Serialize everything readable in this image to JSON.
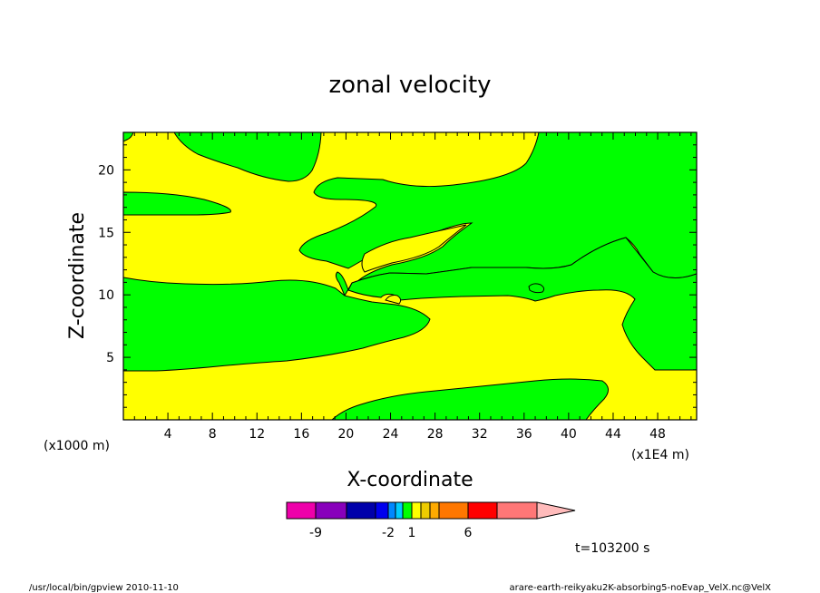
{
  "chart_data": {
    "type": "contour",
    "title": "zonal velocity",
    "xlabel": "X-coordinate",
    "ylabel": "Z-coordinate",
    "x_unit": "(x1E4 m)",
    "y_unit": "(x1000 m)",
    "xlim": [
      0,
      51.5
    ],
    "ylim": [
      0,
      23
    ],
    "x_ticks": [
      4,
      8,
      12,
      16,
      20,
      24,
      28,
      32,
      36,
      40,
      44,
      48
    ],
    "y_ticks": [
      5,
      10,
      15,
      20
    ],
    "grid": false,
    "fill_colors": {
      "positive": "#ffff00",
      "negative": "#00ff00"
    },
    "colorbar": {
      "colors": [
        "#ee00aa",
        "#8800bb",
        "#0000aa",
        "#0000ee",
        "#0088ff",
        "#00ccff",
        "#00ff00",
        "#ffff00",
        "#eecc00",
        "#ffaa00",
        "#ff7700",
        "#ff0000",
        "#ff7777",
        "#ffbbbb"
      ],
      "labels": [
        "-9",
        "-2",
        "1",
        "6"
      ]
    },
    "time_label": "t=103200 s"
  },
  "footer": {
    "left": "/usr/local/bin/gpview  2010-11-10",
    "right": "arare-earth-reikyaku2K-absorbing5-noEvap_VelX.nc@VelX"
  }
}
